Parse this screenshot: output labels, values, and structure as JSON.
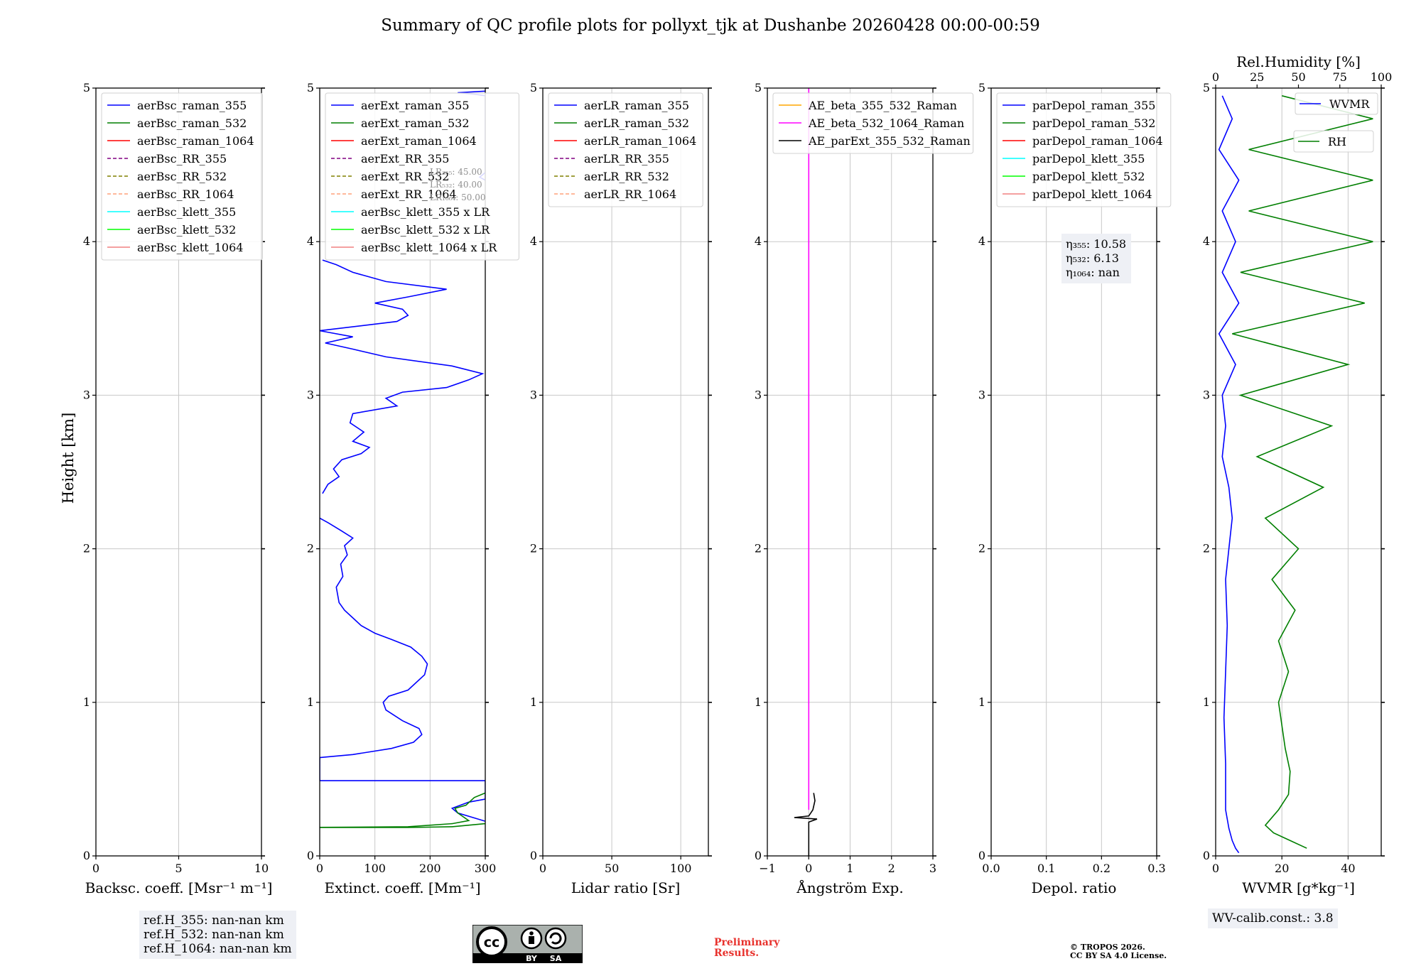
{
  "figure": {
    "title": "Summary of QC profile plots for pollyxt_tjk at Dushanbe 20260428 00:00-00:59",
    "ylabel": "Height [km]",
    "refh": [
      "ref.H_355: nan-nan km",
      "ref.H_532: nan-nan km",
      "ref.H_1064: nan-nan km"
    ],
    "wv_calib": "WV-calib.const.: 3.8",
    "preliminary": [
      "Preliminary",
      "Results."
    ],
    "copyright": [
      "© TROPOS 2026.",
      "CC BY SA 4.0 License."
    ],
    "license_badge": {
      "cc": "cc",
      "by": "BY",
      "sa": "SA"
    }
  },
  "colors": {
    "blue": "#0000ff",
    "green": "#007f00",
    "red": "#ff0000",
    "purple": "#800080",
    "olive": "#808000",
    "salmon": "#ffa07a",
    "cyan": "#00ffff",
    "lime": "#00ff00",
    "lightcoral": "#f08080",
    "orange": "#ffa500",
    "magenta": "#ff00ff",
    "black": "#000000",
    "grid": "#c8c8c8",
    "annotation_bg": "#eef0f5",
    "preliminary": "#e8322d"
  },
  "chart_data": [
    {
      "type": "line",
      "name": "backscatter",
      "xlabel": "Backsc. coeff. [Msr⁻¹ m⁻¹]",
      "xlim": [
        0,
        10
      ],
      "xticks": [
        0,
        5,
        10
      ],
      "xticklabels": [
        "0",
        "5",
        "10"
      ],
      "ylim": [
        0,
        5
      ],
      "yticks": [
        0,
        1,
        2,
        3,
        4,
        5
      ],
      "legend_position": "upper-left",
      "legend": [
        {
          "label": "aerBsc_raman_355",
          "color": "blue",
          "style": "solid"
        },
        {
          "label": "aerBsc_raman_532",
          "color": "green",
          "style": "solid"
        },
        {
          "label": "aerBsc_raman_1064",
          "color": "red",
          "style": "solid"
        },
        {
          "label": "aerBsc_RR_355",
          "color": "purple",
          "style": "dashed"
        },
        {
          "label": "aerBsc_RR_532",
          "color": "olive",
          "style": "dashed"
        },
        {
          "label": "aerBsc_RR_1064",
          "color": "salmon",
          "style": "dashed"
        },
        {
          "label": "aerBsc_klett_355",
          "color": "cyan",
          "style": "solid"
        },
        {
          "label": "aerBsc_klett_532",
          "color": "lime",
          "style": "solid"
        },
        {
          "label": "aerBsc_klett_1064",
          "color": "lightcoral",
          "style": "solid"
        }
      ],
      "series": []
    },
    {
      "type": "line",
      "name": "extinction",
      "xlabel": "Extinct. coeff. [Mm⁻¹]",
      "xlim": [
        0,
        300
      ],
      "xticks": [
        0,
        100,
        200,
        300
      ],
      "xticklabels": [
        "0",
        "100",
        "200",
        "300"
      ],
      "ylim": [
        0,
        5
      ],
      "yticks": [
        0,
        1,
        2,
        3,
        4,
        5
      ],
      "legend_position": "upper-left",
      "lr_labels": [
        "LR₃₅₅: 45.00",
        "LR₅₃₂: 40.00",
        "LR₁₀₆₄: 50.00"
      ],
      "legend": [
        {
          "label": "aerExt_raman_355",
          "color": "blue",
          "style": "solid"
        },
        {
          "label": "aerExt_raman_532",
          "color": "green",
          "style": "solid"
        },
        {
          "label": "aerExt_raman_1064",
          "color": "red",
          "style": "solid"
        },
        {
          "label": "aerExt_RR_355",
          "color": "purple",
          "style": "dashed"
        },
        {
          "label": "aerExt_RR_532",
          "color": "olive",
          "style": "dashed"
        },
        {
          "label": "aerExt_RR_1064",
          "color": "salmon",
          "style": "dashed"
        },
        {
          "label": "aerBsc_klett_355 x LR",
          "color": "cyan",
          "style": "solid"
        },
        {
          "label": "aerBsc_klett_532 x LR",
          "color": "lime",
          "style": "solid"
        },
        {
          "label": "aerBsc_klett_1064 x LR",
          "color": "lightcoral",
          "style": "solid"
        }
      ],
      "series": [
        {
          "name": "aerExt_raman_355",
          "color": "blue",
          "points": [
            [
              305,
              0.22
            ],
            [
              250,
              0.28
            ],
            [
              240,
              0.31
            ],
            [
              270,
              0.35
            ],
            [
              300,
              0.37
            ],
            [
              300,
              0.49
            ],
            [
              0,
              0.49
            ],
            [
              0,
              0.64
            ],
            [
              60,
              0.66
            ],
            [
              130,
              0.7
            ],
            [
              170,
              0.74
            ],
            [
              185,
              0.79
            ],
            [
              180,
              0.83
            ],
            [
              150,
              0.88
            ],
            [
              120,
              0.95
            ],
            [
              115,
              1.0
            ],
            [
              125,
              1.04
            ],
            [
              160,
              1.08
            ],
            [
              190,
              1.18
            ],
            [
              195,
              1.25
            ],
            [
              185,
              1.3
            ],
            [
              165,
              1.36
            ],
            [
              130,
              1.41
            ],
            [
              100,
              1.45
            ],
            [
              75,
              1.5
            ],
            [
              60,
              1.55
            ],
            [
              45,
              1.6
            ],
            [
              35,
              1.65
            ],
            [
              30,
              1.75
            ],
            [
              42,
              1.82
            ],
            [
              38,
              1.9
            ],
            [
              50,
              1.96
            ],
            [
              45,
              2.02
            ],
            [
              60,
              2.07
            ],
            [
              38,
              2.12
            ],
            [
              15,
              2.17
            ],
            [
              0,
              2.2
            ]
          ]
        },
        {
          "name": "aerExt_raman_355_upper",
          "color": "blue",
          "points": [
            [
              5,
              2.36
            ],
            [
              15,
              2.42
            ],
            [
              35,
              2.47
            ],
            [
              25,
              2.52
            ],
            [
              40,
              2.58
            ],
            [
              75,
              2.62
            ],
            [
              90,
              2.66
            ],
            [
              60,
              2.7
            ],
            [
              80,
              2.76
            ],
            [
              55,
              2.82
            ],
            [
              60,
              2.88
            ],
            [
              140,
              2.93
            ],
            [
              120,
              2.98
            ],
            [
              150,
              3.02
            ],
            [
              230,
              3.05
            ],
            [
              270,
              3.1
            ],
            [
              295,
              3.14
            ],
            [
              240,
              3.19
            ],
            [
              120,
              3.25
            ],
            [
              60,
              3.3
            ],
            [
              10,
              3.34
            ],
            [
              60,
              3.38
            ],
            [
              0,
              3.42
            ],
            [
              140,
              3.48
            ],
            [
              160,
              3.52
            ],
            [
              150,
              3.56
            ],
            [
              100,
              3.6
            ],
            [
              160,
              3.64
            ],
            [
              230,
              3.69
            ],
            [
              120,
              3.74
            ],
            [
              60,
              3.8
            ],
            [
              30,
              3.85
            ],
            [
              5,
              3.88
            ]
          ]
        },
        {
          "name": "aerExt_raman_355_top",
          "color": "blue",
          "points": [
            [
              300,
              4.98
            ],
            [
              250,
              4.97
            ],
            [
              280,
              4.96
            ],
            [
              300,
              4.95
            ],
            [
              300,
              4.7
            ],
            [
              300,
              4.45
            ],
            [
              290,
              4.42
            ],
            [
              300,
              4.4
            ]
          ]
        },
        {
          "name": "aerExt_raman_532",
          "color": "green",
          "points": [
            [
              300,
              0.21
            ],
            [
              240,
              0.19
            ],
            [
              160,
              0.185
            ],
            [
              0,
              0.185
            ],
            [
              0,
              0.186
            ],
            [
              160,
              0.19
            ],
            [
              240,
              0.21
            ],
            [
              270,
              0.23
            ],
            [
              250,
              0.28
            ],
            [
              245,
              0.31
            ],
            [
              265,
              0.33
            ],
            [
              280,
              0.38
            ],
            [
              300,
              0.41
            ]
          ]
        }
      ]
    },
    {
      "type": "line",
      "name": "lidar_ratio",
      "xlabel": "Lidar ratio [Sr]",
      "xlim": [
        0,
        120
      ],
      "xticks": [
        0,
        50,
        100
      ],
      "xticklabels": [
        "0",
        "50",
        "100"
      ],
      "ylim": [
        0,
        5
      ],
      "yticks": [
        0,
        1,
        2,
        3,
        4,
        5
      ],
      "legend_position": "upper-left",
      "legend": [
        {
          "label": "aerLR_raman_355",
          "color": "blue",
          "style": "solid"
        },
        {
          "label": "aerLR_raman_532",
          "color": "green",
          "style": "solid"
        },
        {
          "label": "aerLR_raman_1064",
          "color": "red",
          "style": "solid"
        },
        {
          "label": "aerLR_RR_355",
          "color": "purple",
          "style": "dashed"
        },
        {
          "label": "aerLR_RR_532",
          "color": "olive",
          "style": "dashed"
        },
        {
          "label": "aerLR_RR_1064",
          "color": "salmon",
          "style": "dashed"
        }
      ],
      "series": []
    },
    {
      "type": "line",
      "name": "angstrom",
      "xlabel": "Ångström Exp.",
      "xlim": [
        -1,
        3
      ],
      "xticks": [
        -1,
        0,
        1,
        2,
        3
      ],
      "xticklabels": [
        "−1",
        "0",
        "1",
        "2",
        "3"
      ],
      "ylim": [
        0,
        5
      ],
      "yticks": [
        0,
        1,
        2,
        3,
        4,
        5
      ],
      "legend_position": "upper-left",
      "legend": [
        {
          "label": "AE_beta_355_532_Raman",
          "color": "orange",
          "style": "solid"
        },
        {
          "label": "AE_beta_532_1064_Raman",
          "color": "magenta",
          "style": "solid"
        },
        {
          "label": "AE_parExt_355_532_Raman",
          "color": "black",
          "style": "solid"
        }
      ],
      "series": [
        {
          "name": "AE_beta_532_1064_Raman",
          "color": "magenta",
          "points": [
            [
              0,
              0.3
            ],
            [
              0,
              5.0
            ]
          ]
        },
        {
          "name": "AE_parExt_355_532_Raman",
          "color": "black",
          "points": [
            [
              0,
              0
            ],
            [
              0,
              0.22
            ],
            [
              0.2,
              0.24
            ],
            [
              -0.35,
              0.25
            ],
            [
              0,
              0.26
            ],
            [
              0.1,
              0.3
            ],
            [
              0.15,
              0.36
            ],
            [
              0.12,
              0.41
            ]
          ]
        }
      ]
    },
    {
      "type": "line",
      "name": "depolarization",
      "xlabel": "Depol. ratio",
      "xlim": [
        0,
        0.3
      ],
      "xticks": [
        0,
        0.1,
        0.2,
        0.3
      ],
      "xticklabels": [
        "0.0",
        "0.1",
        "0.2",
        "0.3"
      ],
      "ylim": [
        0,
        5
      ],
      "yticks": [
        0,
        1,
        2,
        3,
        4,
        5
      ],
      "legend_position": "upper-left",
      "eta_labels": [
        "η₃₅₅: 10.58",
        "η₅₃₂: 6.13",
        "η₁₀₆₄: nan"
      ],
      "legend": [
        {
          "label": "parDepol_raman_355",
          "color": "blue",
          "style": "solid"
        },
        {
          "label": "parDepol_raman_532",
          "color": "green",
          "style": "solid"
        },
        {
          "label": "parDepol_raman_1064",
          "color": "red",
          "style": "solid"
        },
        {
          "label": "parDepol_klett_355",
          "color": "cyan",
          "style": "solid"
        },
        {
          "label": "parDepol_klett_532",
          "color": "lime",
          "style": "solid"
        },
        {
          "label": "parDepol_klett_1064",
          "color": "lightcoral",
          "style": "solid"
        }
      ],
      "series": []
    },
    {
      "type": "line",
      "name": "wvmr",
      "xlabel": "WVMR [g*kg⁻¹]",
      "xlim": [
        0,
        50
      ],
      "xticks": [
        0,
        20,
        40
      ],
      "xticklabels": [
        "0",
        "20",
        "40"
      ],
      "ylim": [
        0,
        5
      ],
      "yticks": [
        0,
        1,
        2,
        3,
        4,
        5
      ],
      "top_xlabel": "Rel.Humidity [%]",
      "top_xlim": [
        0,
        100
      ],
      "top_xticks": [
        0,
        25,
        50,
        75,
        100
      ],
      "top_xticklabels": [
        "0",
        "25",
        "50",
        "75",
        "100"
      ],
      "legend_position": "upper-right",
      "legend": [
        {
          "label": "WVMR",
          "color": "blue",
          "style": "solid"
        },
        {
          "label": "RH",
          "color": "green",
          "style": "solid"
        }
      ],
      "series": [
        {
          "name": "WVMR",
          "color": "blue",
          "axis": "bottom",
          "points": [
            [
              7,
              0.02
            ],
            [
              6,
              0.05
            ],
            [
              5,
              0.1
            ],
            [
              4,
              0.18
            ],
            [
              3,
              0.3
            ],
            [
              3,
              0.6
            ],
            [
              2.5,
              0.9
            ],
            [
              3,
              1.2
            ],
            [
              3.5,
              1.5
            ],
            [
              3,
              1.8
            ],
            [
              4,
              2.0
            ],
            [
              5,
              2.2
            ],
            [
              4,
              2.4
            ],
            [
              2,
              2.6
            ],
            [
              3,
              2.8
            ],
            [
              2,
              3.0
            ],
            [
              6,
              3.2
            ],
            [
              1,
              3.4
            ],
            [
              7,
              3.6
            ],
            [
              2,
              3.8
            ],
            [
              6,
              4.0
            ],
            [
              2,
              4.2
            ],
            [
              7,
              4.4
            ],
            [
              1,
              4.6
            ],
            [
              5,
              4.8
            ],
            [
              2,
              4.95
            ]
          ]
        },
        {
          "name": "RH",
          "color": "green",
          "axis": "top",
          "points": [
            [
              55,
              0.05
            ],
            [
              45,
              0.1
            ],
            [
              35,
              0.15
            ],
            [
              30,
              0.2
            ],
            [
              38,
              0.3
            ],
            [
              44,
              0.4
            ],
            [
              45,
              0.55
            ],
            [
              42,
              0.7
            ],
            [
              40,
              0.85
            ],
            [
              38,
              1.0
            ],
            [
              44,
              1.2
            ],
            [
              38,
              1.4
            ],
            [
              48,
              1.6
            ],
            [
              34,
              1.8
            ],
            [
              50,
              2.0
            ],
            [
              30,
              2.2
            ],
            [
              65,
              2.4
            ],
            [
              25,
              2.6
            ],
            [
              70,
              2.8
            ],
            [
              15,
              3.0
            ],
            [
              80,
              3.2
            ],
            [
              10,
              3.4
            ],
            [
              90,
              3.6
            ],
            [
              15,
              3.8
            ],
            [
              95,
              4.0
            ],
            [
              20,
              4.2
            ],
            [
              95,
              4.4
            ],
            [
              20,
              4.6
            ],
            [
              95,
              4.8
            ],
            [
              40,
              4.95
            ]
          ]
        }
      ]
    }
  ]
}
